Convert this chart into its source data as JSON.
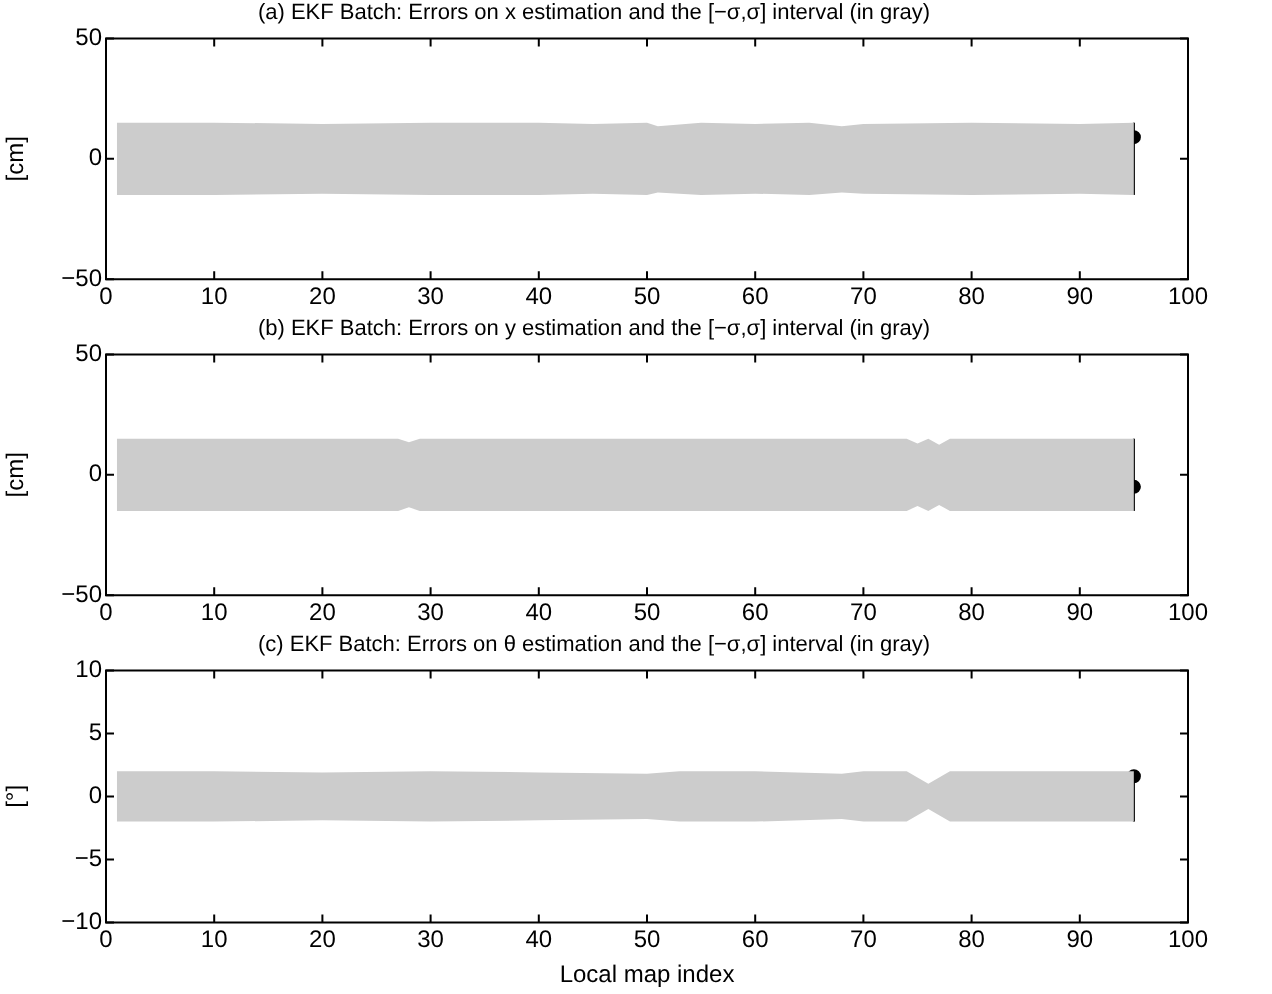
{
  "chart_data": [
    {
      "type": "area",
      "title": "(a) EKF Batch: Errors on x estimation and the [−σ,σ] interval (in gray)",
      "ylabel": "[cm]",
      "xlim": [
        0,
        100
      ],
      "xticks": [
        0,
        10,
        20,
        30,
        40,
        50,
        60,
        70,
        80,
        90,
        100
      ],
      "ylim": [
        -50,
        50
      ],
      "yticks": [
        {
          "value": -50,
          "label": "−50"
        },
        0,
        50
      ],
      "series": [
        {
          "type": "area",
          "color": "#cccccc",
          "x": [
            1,
            10,
            20,
            30,
            40,
            45,
            50,
            51,
            55,
            60,
            65,
            68,
            70,
            80,
            90,
            95
          ],
          "values": [
            null,
            null,
            null,
            null,
            null,
            null,
            null,
            null,
            null,
            null,
            null,
            null,
            null,
            null,
            null,
            null
          ],
          "lower": [
            -15,
            -15,
            -14.5,
            -15,
            -15,
            -14.5,
            -15,
            -14,
            -15,
            -14.5,
            -15,
            -14,
            -14.5,
            -15,
            -14.5,
            -15
          ],
          "upper": [
            15,
            15,
            14.5,
            15,
            15,
            14.5,
            15,
            13.5,
            15,
            14.5,
            15,
            13.5,
            14.5,
            15,
            14.5,
            15
          ]
        },
        {
          "type": "scatter",
          "color": "#000000",
          "x": [
            95
          ],
          "values": [
            9
          ],
          "errors": [
            [
              -15,
              15
            ]
          ],
          "marker": "circle"
        }
      ]
    },
    {
      "type": "area",
      "title": "(b) EKF Batch: Errors on y estimation and the [−σ,σ] interval (in gray)",
      "ylabel": "[cm]",
      "xlim": [
        0,
        100
      ],
      "xticks": [
        0,
        10,
        20,
        30,
        40,
        50,
        60,
        70,
        80,
        90,
        100
      ],
      "ylim": [
        -50,
        50
      ],
      "yticks": [
        {
          "value": -50,
          "label": "−50"
        },
        0,
        50
      ],
      "series": [
        {
          "type": "area",
          "color": "#cccccc",
          "x": [
            1,
            10,
            20,
            27,
            28,
            29,
            40,
            50,
            60,
            70,
            74,
            75,
            76,
            77,
            78,
            85,
            90,
            95
          ],
          "values": [
            null,
            null,
            null,
            null,
            null,
            null,
            null,
            null,
            null,
            null,
            null,
            null,
            null,
            null,
            null,
            null,
            null,
            null
          ],
          "lower": [
            -15,
            -15,
            -15,
            -15,
            -13.5,
            -15,
            -15,
            -15,
            -15,
            -15,
            -15,
            -13,
            -15,
            -12.5,
            -15,
            -15,
            -15,
            -15
          ],
          "upper": [
            15,
            15,
            15,
            15,
            13.5,
            15,
            15,
            15,
            15,
            15,
            15,
            13,
            15,
            12.5,
            15,
            15,
            15,
            15
          ]
        },
        {
          "type": "scatter",
          "color": "#000000",
          "x": [
            95
          ],
          "values": [
            -5
          ],
          "errors": [
            [
              -15,
              15
            ]
          ],
          "marker": "circle"
        }
      ]
    },
    {
      "type": "area",
      "title": "(c) EKF Batch: Errors on θ estimation and the [−σ,σ] interval (in gray)",
      "xlabel": "Local map index",
      "ylabel": "[°]",
      "xlim": [
        0,
        100
      ],
      "xticks": [
        0,
        10,
        20,
        30,
        40,
        50,
        60,
        70,
        80,
        90,
        100
      ],
      "ylim": [
        -10,
        10
      ],
      "yticks": [
        {
          "value": -10,
          "label": "−10"
        },
        {
          "value": -5,
          "label": "−5"
        },
        0,
        5,
        10
      ],
      "series": [
        {
          "type": "area",
          "color": "#cccccc",
          "x": [
            1,
            10,
            20,
            30,
            40,
            50,
            53,
            60,
            68,
            70,
            74,
            76,
            78,
            85,
            90,
            95
          ],
          "values": [
            null,
            null,
            null,
            null,
            null,
            null,
            null,
            null,
            null,
            null,
            null,
            null,
            null,
            null,
            null,
            null
          ],
          "lower": [
            -2,
            -2,
            -1.9,
            -2,
            -1.9,
            -1.8,
            -2,
            -2,
            -1.8,
            -2,
            -2,
            -1,
            -2,
            -2,
            -2,
            -2
          ],
          "upper": [
            2,
            2,
            1.9,
            2,
            1.9,
            1.8,
            2,
            2,
            1.8,
            2,
            2,
            1,
            2,
            2,
            2,
            2
          ]
        },
        {
          "type": "scatter",
          "color": "#000000",
          "x": [
            95
          ],
          "values": [
            1.6
          ],
          "errors": [
            [
              -2,
              1.6
            ]
          ],
          "marker": "circle"
        }
      ]
    }
  ]
}
